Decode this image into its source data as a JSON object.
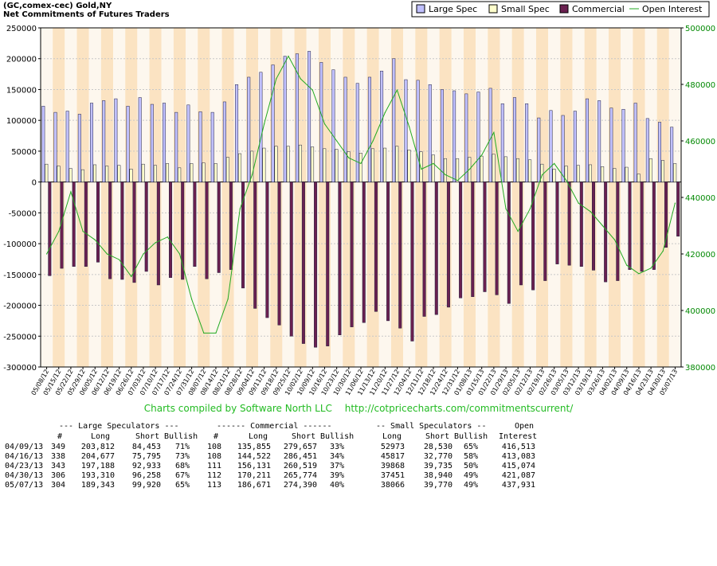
{
  "chart_data": {
    "type": "bar",
    "title": "(GC,comex-cec) Gold,NY",
    "subtitle": "Net Commitments of Futures Traders",
    "ylim": [
      -300000,
      250000
    ],
    "y2lim": [
      380000,
      500000
    ],
    "yticks": [
      "250000",
      "200000",
      "150000",
      "100000",
      "50000",
      "0",
      "-50000",
      "-100000",
      "-150000",
      "-200000",
      "-250000",
      "-300000"
    ],
    "y2ticks": [
      "500000",
      "480000",
      "460000",
      "440000",
      "420000",
      "400000",
      "380000"
    ],
    "categories": [
      "05/08/12",
      "05/15/12",
      "05/22/12",
      "05/29/12",
      "06/05/12",
      "06/12/12",
      "06/19/12",
      "06/26/12",
      "07/03/12",
      "07/10/12",
      "07/17/12",
      "07/24/12",
      "07/31/12",
      "08/07/12",
      "08/14/12",
      "08/21/12",
      "08/28/12",
      "09/04/12",
      "09/11/12",
      "09/18/12",
      "09/25/12",
      "10/02/12",
      "10/09/12",
      "10/16/12",
      "10/23/12",
      "10/30/12",
      "11/06/12",
      "11/13/12",
      "11/20/12",
      "11/27/12",
      "12/04/12",
      "12/11/12",
      "12/18/12",
      "12/24/12",
      "12/31/12",
      "01/08/13",
      "01/15/13",
      "01/22/13",
      "01/29/13",
      "02/05/13",
      "02/12/13",
      "02/19/13",
      "02/26/13",
      "03/05/13",
      "03/12/13",
      "03/19/13",
      "03/26/13",
      "04/02/13",
      "04/09/13",
      "04/16/13",
      "04/23/13",
      "04/30/13",
      "05/07/13"
    ],
    "series": [
      {
        "name": "Large Spec",
        "color": "#c0c0ff",
        "values": [
          123000,
          113000,
          115000,
          110000,
          128000,
          132000,
          135000,
          123000,
          137000,
          126000,
          128000,
          113000,
          125000,
          114000,
          113000,
          130000,
          158000,
          170000,
          178000,
          190000,
          204000,
          208000,
          212000,
          194000,
          182000,
          170000,
          160000,
          170000,
          180000,
          200000,
          166000,
          165000,
          158000,
          150000,
          148000,
          143000,
          146000,
          152000,
          127000,
          137000,
          127000,
          104000,
          116000,
          108000,
          115000,
          135000,
          132000,
          120000,
          118000,
          128000,
          103000,
          97000,
          89000
        ]
      },
      {
        "name": "Small Spec",
        "color": "#ffffcc",
        "values": [
          29000,
          26000,
          22000,
          20000,
          28000,
          26000,
          27000,
          21000,
          29000,
          27000,
          30000,
          23000,
          30000,
          31000,
          30000,
          40000,
          46000,
          50000,
          55000,
          58000,
          58000,
          60000,
          57000,
          54000,
          53000,
          49000,
          47000,
          54000,
          55000,
          58000,
          52000,
          49000,
          44000,
          38000,
          38000,
          40000,
          42000,
          45000,
          41000,
          38000,
          36000,
          29000,
          21000,
          26000,
          27000,
          28000,
          25000,
          22000,
          24000,
          13000,
          38000,
          35000,
          30000
        ]
      },
      {
        "name": "Commercial",
        "color": "#6a2050",
        "values": [
          -152000,
          -140000,
          -137000,
          -137000,
          -130000,
          -157000,
          -158000,
          -163000,
          -145000,
          -167000,
          -155000,
          -158000,
          -137000,
          -157000,
          -147000,
          -142000,
          -172000,
          -205000,
          -220000,
          -232000,
          -250000,
          -262000,
          -268000,
          -266000,
          -248000,
          -235000,
          -228000,
          -210000,
          -225000,
          -237000,
          -258000,
          -218000,
          -215000,
          -203000,
          -188000,
          -186000,
          -178000,
          -183000,
          -197000,
          -167000,
          -175000,
          -160000,
          -133000,
          -135000,
          -137000,
          -143000,
          -162000,
          -160000,
          -142000,
          -145000,
          -142000,
          -106000,
          -88000
        ]
      },
      {
        "name": "Open Interest",
        "color": "#22aa22",
        "values": [
          420000,
          428000,
          442000,
          428000,
          425000,
          420000,
          418000,
          412000,
          420000,
          424000,
          426000,
          420000,
          404000,
          392000,
          392000,
          404000,
          436000,
          448000,
          466000,
          482000,
          490000,
          482000,
          478000,
          466000,
          460000,
          454000,
          452000,
          460000,
          470000,
          478000,
          465000,
          450000,
          452000,
          448000,
          446000,
          450000,
          455000,
          463000,
          436000,
          428000,
          436000,
          448000,
          452000,
          446000,
          438000,
          435000,
          430000,
          425000,
          416000,
          413000,
          415000,
          421000,
          438000
        ]
      }
    ]
  },
  "legend": {
    "large_spec": "Large Spec",
    "small_spec": "Small Spec",
    "commercial": "Commercial",
    "open_interest": "Open Interest"
  },
  "credit": {
    "text": "Charts compiled by Software North LLC",
    "url": "http://cotpricecharts.com/commitmentscurrent/"
  },
  "table": {
    "group_headers": {
      "large": "--- Large Speculators ---",
      "commercial": "------ Commercial ------",
      "small": "-- Small Speculators --",
      "open": "Open"
    },
    "col_headers": {
      "large_count": "#",
      "large_long": "Long",
      "large_short": "Short",
      "large_bullish": "Bullish",
      "comm_count": "#",
      "comm_long": "Long",
      "comm_short": "Short",
      "comm_bullish": "Bullish",
      "small_long": "Long",
      "small_short": "Short",
      "small_bullish": "Bullish",
      "open_interest": "Interest"
    },
    "rows": [
      {
        "date": "04/09/13",
        "l_count": "349",
        "l_long": "203,812",
        "l_short": "84,453",
        "l_bull": "71%",
        "c_count": "108",
        "c_long": "135,855",
        "c_short": "279,657",
        "c_bull": "33%",
        "s_long": "52973",
        "s_short": "28,530",
        "s_bull": "65%",
        "oi": "416,513"
      },
      {
        "date": "04/16/13",
        "l_count": "338",
        "l_long": "204,677",
        "l_short": "75,795",
        "l_bull": "73%",
        "c_count": "108",
        "c_long": "144,522",
        "c_short": "286,451",
        "c_bull": "34%",
        "s_long": "45817",
        "s_short": "32,770",
        "s_bull": "58%",
        "oi": "413,083"
      },
      {
        "date": "04/23/13",
        "l_count": "343",
        "l_long": "197,188",
        "l_short": "92,933",
        "l_bull": "68%",
        "c_count": "111",
        "c_long": "156,131",
        "c_short": "260,519",
        "c_bull": "37%",
        "s_long": "39868",
        "s_short": "39,735",
        "s_bull": "50%",
        "oi": "415,074"
      },
      {
        "date": "04/30/13",
        "l_count": "306",
        "l_long": "193,310",
        "l_short": "96,258",
        "l_bull": "67%",
        "c_count": "112",
        "c_long": "170,211",
        "c_short": "265,774",
        "c_bull": "39%",
        "s_long": "37451",
        "s_short": "38,940",
        "s_bull": "49%",
        "oi": "421,087"
      },
      {
        "date": "05/07/13",
        "l_count": "304",
        "l_long": "189,343",
        "l_short": "99,920",
        "l_bull": "65%",
        "c_count": "113",
        "c_long": "186,671",
        "c_short": "274,390",
        "c_bull": "40%",
        "s_long": "38066",
        "s_short": "39,770",
        "s_bull": "49%",
        "oi": "437,931"
      }
    ]
  }
}
